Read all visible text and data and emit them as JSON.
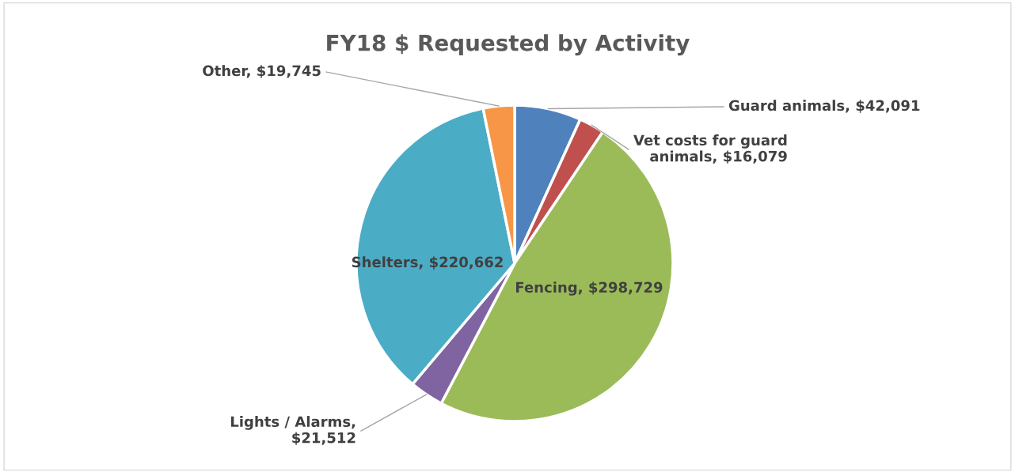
{
  "chart_data": {
    "type": "pie",
    "title": "FY18 $ Requested by Activity",
    "categories": [
      "Guard animals, $42,091",
      "Vet costs for guard animals, $16,079",
      "Fencing, $298,729",
      "Lights / Alarms, $21,512",
      "Shelters, $220,662",
      "Other, $19,745"
    ],
    "values": [
      42091,
      16079,
      298729,
      21512,
      220662,
      19745
    ],
    "colors": [
      "#4f81bd",
      "#c0504d",
      "#9bbb59",
      "#8064a2",
      "#4bacc6",
      "#f79646"
    ],
    "legend": false
  }
}
